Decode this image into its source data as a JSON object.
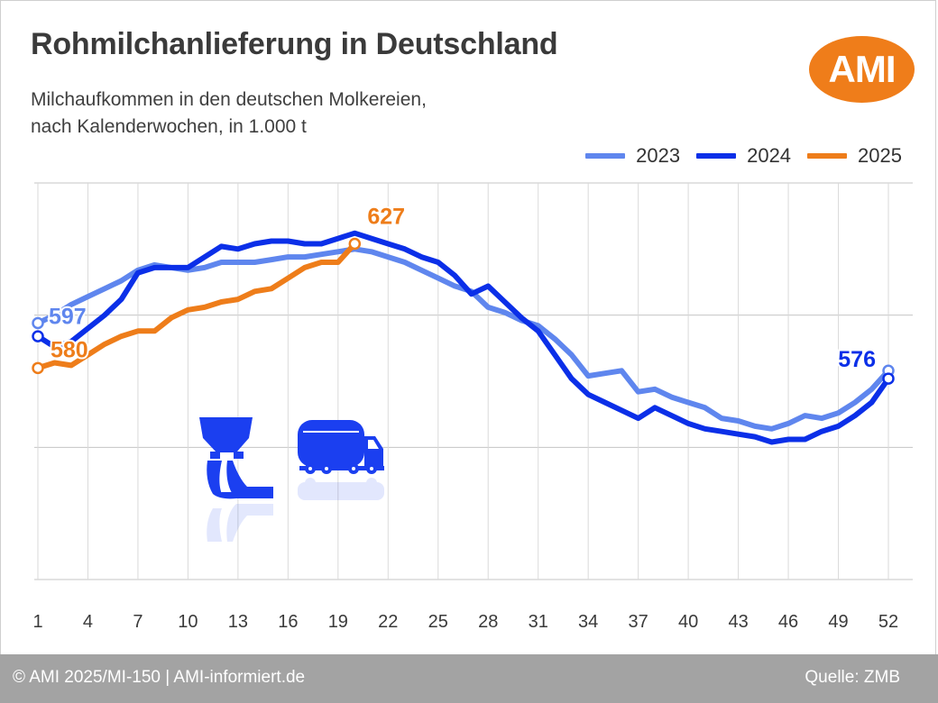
{
  "header": {
    "title": "Rohmilchanlieferung in Deutschland",
    "subtitle_line1": "Milchaufkommen in den deutschen Molkereien,",
    "subtitle_line2": "nach Kalenderwochen, in 1.000 t",
    "logo_text": "AMI",
    "logo_color": "#ef7d1a"
  },
  "icons": [
    "milking-machine-icon",
    "milk-tanker-truck-icon"
  ],
  "footer": {
    "left": "© AMI 2025/MI-150 | AMI-informiert.de",
    "right": "Quelle: ZMB"
  },
  "chart_data": {
    "type": "line",
    "title": "Rohmilchanlieferung in Deutschland",
    "subtitle": "Milchaufkommen in den deutschen Molkereien, nach Kalenderwochen, in 1.000 t",
    "xlabel": "",
    "ylabel": "",
    "x_ticks": [
      1,
      4,
      7,
      10,
      13,
      16,
      19,
      22,
      25,
      28,
      31,
      34,
      37,
      40,
      43,
      46,
      49,
      52
    ],
    "ylim": [
      500,
      650
    ],
    "y_gridlines": [
      500,
      550,
      600,
      650
    ],
    "y_tick_labels_shown": false,
    "grid": true,
    "legend_position": "top-right",
    "series": [
      {
        "name": "2023",
        "color": "#5f86ee",
        "x": [
          1,
          2,
          3,
          4,
          5,
          6,
          7,
          8,
          9,
          10,
          11,
          12,
          13,
          14,
          15,
          16,
          17,
          18,
          19,
          20,
          21,
          22,
          23,
          24,
          25,
          26,
          27,
          28,
          29,
          30,
          31,
          32,
          33,
          34,
          35,
          36,
          37,
          38,
          39,
          40,
          41,
          42,
          43,
          44,
          45,
          46,
          47,
          48,
          49,
          50,
          51,
          52
        ],
        "values": [
          597,
          600,
          604,
          607,
          610,
          613,
          617,
          619,
          618,
          617,
          618,
          620,
          620,
          620,
          621,
          622,
          622,
          623,
          624,
          625,
          624,
          622,
          620,
          617,
          614,
          611,
          609,
          603,
          601,
          598,
          596,
          591,
          585,
          577,
          578,
          579,
          571,
          572,
          569,
          567,
          565,
          561,
          560,
          558,
          557,
          559,
          562,
          561,
          563,
          567,
          572,
          579
        ]
      },
      {
        "name": "2024",
        "color": "#0b2fe8",
        "x": [
          1,
          2,
          3,
          4,
          5,
          6,
          7,
          8,
          9,
          10,
          11,
          12,
          13,
          14,
          15,
          16,
          17,
          18,
          19,
          20,
          21,
          22,
          23,
          24,
          25,
          26,
          27,
          28,
          29,
          30,
          31,
          32,
          33,
          34,
          35,
          36,
          37,
          38,
          39,
          40,
          41,
          42,
          43,
          44,
          45,
          46,
          47,
          48,
          49,
          50,
          51,
          52
        ],
        "values": [
          592,
          588,
          590,
          595,
          600,
          606,
          616,
          618,
          618,
          618,
          622,
          626,
          625,
          627,
          628,
          628,
          627,
          627,
          629,
          631,
          629,
          627,
          625,
          622,
          620,
          615,
          608,
          611,
          605,
          599,
          594,
          585,
          576,
          570,
          567,
          564,
          561,
          565,
          562,
          559,
          557,
          556,
          555,
          554,
          552,
          553,
          553,
          556,
          558,
          562,
          567,
          576
        ]
      },
      {
        "name": "2025",
        "color": "#ee7d1a",
        "x": [
          1,
          2,
          3,
          4,
          5,
          6,
          7,
          8,
          9,
          10,
          11,
          12,
          13,
          14,
          15,
          16,
          17,
          18,
          19,
          20
        ],
        "values": [
          580,
          582,
          581,
          585,
          589,
          592,
          594,
          594,
          599,
          602,
          603,
          605,
          606,
          609,
          610,
          614,
          618,
          620,
          620,
          627
        ]
      }
    ],
    "annotations": [
      {
        "text": "597",
        "series": "2023",
        "x": 1,
        "value": 597
      },
      {
        "text": "580",
        "series": "2025",
        "x": 1,
        "value": 580
      },
      {
        "text": "627",
        "series": "2025",
        "x": 20,
        "value": 627
      },
      {
        "text": "576",
        "series": "2024",
        "x": 52,
        "value": 576
      }
    ]
  }
}
